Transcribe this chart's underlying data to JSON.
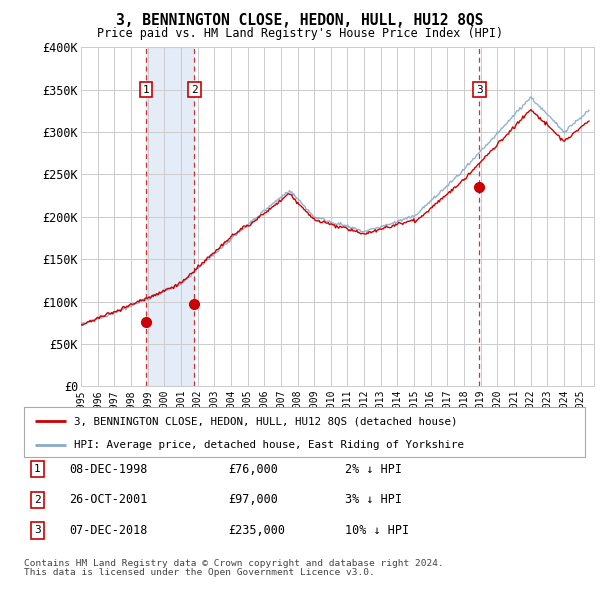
{
  "title": "3, BENNINGTON CLOSE, HEDON, HULL, HU12 8QS",
  "subtitle": "Price paid vs. HM Land Registry's House Price Index (HPI)",
  "ylim": [
    0,
    400000
  ],
  "yticks": [
    0,
    50000,
    100000,
    150000,
    200000,
    250000,
    300000,
    350000,
    400000
  ],
  "ytick_labels": [
    "£0",
    "£50K",
    "£100K",
    "£150K",
    "£200K",
    "£250K",
    "£300K",
    "£350K",
    "£400K"
  ],
  "xlim_start": 1995.0,
  "xlim_end": 2025.8,
  "background_color": "#ffffff",
  "plot_bg_color": "#ffffff",
  "grid_color": "#cccccc",
  "sale_color": "#cc0000",
  "hpi_color": "#88aacc",
  "vline_color": "#cc3333",
  "vline_fill": "#dce8f5",
  "transactions": [
    {
      "num": 1,
      "date_label": "08-DEC-1998",
      "year": 1998.92,
      "price": 76000,
      "pct": "2%",
      "dir": "↓"
    },
    {
      "num": 2,
      "date_label": "26-OCT-2001",
      "year": 2001.81,
      "price": 97000,
      "pct": "3%",
      "dir": "↓"
    },
    {
      "num": 3,
      "date_label": "07-DEC-2018",
      "year": 2018.92,
      "price": 235000,
      "pct": "10%",
      "dir": "↓"
    }
  ],
  "legend_sale_label": "3, BENNINGTON CLOSE, HEDON, HULL, HU12 8QS (detached house)",
  "legend_hpi_label": "HPI: Average price, detached house, East Riding of Yorkshire",
  "footer1": "Contains HM Land Registry data © Crown copyright and database right 2024.",
  "footer2": "This data is licensed under the Open Government Licence v3.0."
}
